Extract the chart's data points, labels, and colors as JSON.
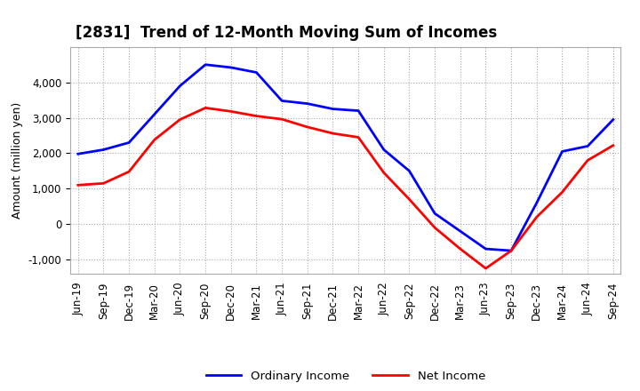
{
  "title": "[2831]  Trend of 12-Month Moving Sum of Incomes",
  "ylabel": "Amount (million yen)",
  "x_labels": [
    "Jun-19",
    "Sep-19",
    "Dec-19",
    "Mar-20",
    "Jun-20",
    "Sep-20",
    "Dec-20",
    "Mar-21",
    "Jun-21",
    "Sep-21",
    "Dec-21",
    "Mar-22",
    "Jun-22",
    "Sep-22",
    "Dec-22",
    "Mar-23",
    "Jun-23",
    "Sep-23",
    "Dec-23",
    "Mar-24",
    "Jun-24",
    "Sep-24"
  ],
  "ordinary_income": [
    1980,
    2100,
    2300,
    3100,
    3900,
    4500,
    4420,
    4280,
    3480,
    3400,
    3250,
    3200,
    2100,
    1500,
    300,
    -200,
    -700,
    -750,
    600,
    2050,
    2200,
    2950
  ],
  "net_income": [
    1100,
    1150,
    1480,
    2380,
    2950,
    3280,
    3180,
    3050,
    2960,
    2740,
    2560,
    2450,
    1450,
    700,
    -100,
    -700,
    -1250,
    -750,
    200,
    900,
    1800,
    2220
  ],
  "ordinary_color": "#0000ff",
  "net_color": "#ff0000",
  "ylim": [
    -1400,
    5000
  ],
  "yticks": [
    -1000,
    0,
    1000,
    2000,
    3000,
    4000
  ],
  "grid_color": "#aaaaaa",
  "background_color": "#ffffff",
  "title_fontsize": 12,
  "label_fontsize": 9,
  "tick_fontsize": 8.5
}
